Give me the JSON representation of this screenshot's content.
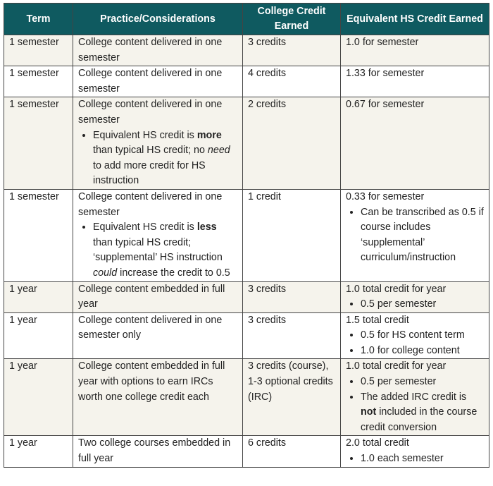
{
  "headers": [
    "Term",
    "Practice/Considerations",
    "College Credit Earned",
    "Equivalent HS Credit Earned"
  ],
  "colors": {
    "header_bg": "#0f5a60",
    "shaded_row_bg": "#f5f3ec"
  },
  "rows": [
    {
      "shaded": true,
      "cells": [
        {
          "p": [
            [
              {
                "t": "1 semester"
              }
            ]
          ]
        },
        {
          "p": [
            [
              {
                "t": "College content delivered in one semester"
              }
            ]
          ]
        },
        {
          "p": [
            [
              {
                "t": "3 credits"
              }
            ]
          ]
        },
        {
          "p": [
            [
              {
                "t": "1.0 for semester"
              }
            ]
          ]
        }
      ]
    },
    {
      "shaded": false,
      "cells": [
        {
          "p": [
            [
              {
                "t": "1 semester"
              }
            ]
          ]
        },
        {
          "p": [
            [
              {
                "t": "College content delivered in one semester"
              }
            ]
          ]
        },
        {
          "p": [
            [
              {
                "t": "4 credits"
              }
            ]
          ]
        },
        {
          "p": [
            [
              {
                "t": "1.33 for semester"
              }
            ]
          ]
        }
      ]
    },
    {
      "shaded": true,
      "cells": [
        {
          "p": [
            [
              {
                "t": "1 semester"
              }
            ]
          ]
        },
        {
          "p": [
            [
              {
                "t": "College content delivered in one semester"
              }
            ]
          ],
          "bullets": [
            [
              {
                "t": "Equivalent HS credit is "
              },
              {
                "t": "more",
                "b": true
              },
              {
                "t": " than typical HS credit; no "
              },
              {
                "t": "need",
                "i": true
              },
              {
                "t": " to add more credit for HS instruction"
              }
            ]
          ]
        },
        {
          "p": [
            [
              {
                "t": "2 credits"
              }
            ]
          ]
        },
        {
          "p": [
            [
              {
                "t": "0.67 for semester"
              }
            ]
          ]
        }
      ]
    },
    {
      "shaded": false,
      "cells": [
        {
          "p": [
            [
              {
                "t": "1 semester"
              }
            ]
          ]
        },
        {
          "p": [
            [
              {
                "t": "College content delivered in one semester"
              }
            ]
          ],
          "bullets": [
            [
              {
                "t": "Equivalent HS credit is "
              },
              {
                "t": "less",
                "b": true
              },
              {
                "t": " than typical HS credit; ‘supplemental’ HS instruction "
              },
              {
                "t": "could",
                "i": true
              },
              {
                "t": " increase the credit to 0.5"
              }
            ]
          ]
        },
        {
          "p": [
            [
              {
                "t": "1 credit"
              }
            ]
          ]
        },
        {
          "p": [
            [
              {
                "t": "0.33 for semester"
              }
            ]
          ],
          "bullets": [
            [
              {
                "t": "Can be transcribed as 0.5 if course includes ‘supplemental’ curriculum/instruction"
              }
            ]
          ]
        }
      ]
    },
    {
      "shaded": true,
      "cells": [
        {
          "p": [
            [
              {
                "t": "1 year"
              }
            ]
          ]
        },
        {
          "p": [
            [
              {
                "t": "College content embedded in full year"
              }
            ]
          ]
        },
        {
          "p": [
            [
              {
                "t": "3 credits"
              }
            ]
          ]
        },
        {
          "p": [
            [
              {
                "t": "1.0 total credit for year"
              }
            ]
          ],
          "bullets": [
            [
              {
                "t": "0.5 per semester"
              }
            ]
          ]
        }
      ]
    },
    {
      "shaded": false,
      "cells": [
        {
          "p": [
            [
              {
                "t": "1 year"
              }
            ]
          ]
        },
        {
          "p": [
            [
              {
                "t": "College content delivered in one semester only"
              }
            ]
          ]
        },
        {
          "p": [
            [
              {
                "t": "3 credits"
              }
            ]
          ]
        },
        {
          "p": [
            [
              {
                "t": "1.5 total credit"
              }
            ]
          ],
          "bullets": [
            [
              {
                "t": "0.5 for HS content term"
              }
            ],
            [
              {
                "t": "1.0 for college content"
              }
            ]
          ]
        }
      ]
    },
    {
      "shaded": true,
      "cells": [
        {
          "p": [
            [
              {
                "t": "1 year"
              }
            ]
          ]
        },
        {
          "p": [
            [
              {
                "t": "College content embedded in full year with options to earn IRCs worth one college credit each"
              }
            ]
          ]
        },
        {
          "p": [
            [
              {
                "t": "3 credits (course),"
              }
            ],
            [
              {
                "t": "1-3 optional credits (IRC)"
              }
            ]
          ]
        },
        {
          "p": [
            [
              {
                "t": "1.0 total credit for year"
              }
            ]
          ],
          "bullets": [
            [
              {
                "t": "0.5 per semester"
              }
            ],
            [
              {
                "t": "The added IRC credit is "
              },
              {
                "t": "not",
                "b": true
              },
              {
                "t": " included in the course credit conversion"
              }
            ]
          ]
        }
      ]
    },
    {
      "shaded": false,
      "cells": [
        {
          "p": [
            [
              {
                "t": "1 year"
              }
            ]
          ]
        },
        {
          "p": [
            [
              {
                "t": "Two college courses embedded in full year"
              }
            ]
          ]
        },
        {
          "p": [
            [
              {
                "t": "6 credits"
              }
            ]
          ]
        },
        {
          "p": [
            [
              {
                "t": "2.0 total credit"
              }
            ]
          ],
          "bullets": [
            [
              {
                "t": "1.0 each semester"
              }
            ]
          ]
        }
      ]
    }
  ]
}
